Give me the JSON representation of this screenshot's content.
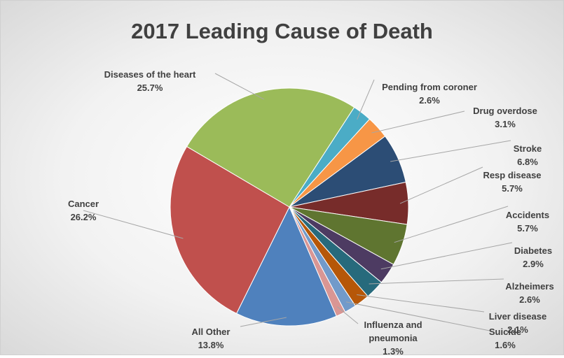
{
  "chart_data": {
    "type": "pie",
    "title": "2017 Leading Cause of Death",
    "categories": [
      "Pending from coroner",
      "Drug overdose",
      "Stroke",
      "Resp disease",
      "Accidents",
      "Diabetes",
      "Alzheimers",
      "Liver disease",
      "Suicide",
      "Influenza and pneumonia",
      "All Other",
      "Cancer",
      "Diseases of the heart"
    ],
    "values": [
      2.6,
      3.1,
      6.8,
      5.7,
      5.7,
      2.9,
      2.6,
      2.1,
      1.6,
      1.3,
      13.8,
      26.2,
      25.7
    ],
    "value_labels": [
      "2.6%",
      "3.1%",
      "6.8%",
      "5.7%",
      "5.7%",
      "2.9%",
      "2.6%",
      "2.1%",
      "1.6%",
      "1.3%",
      "13.8%",
      "26.2%",
      "25.7%"
    ],
    "colors": [
      "#4bacc6",
      "#f79646",
      "#2c4d75",
      "#772c2a",
      "#5f7530",
      "#4d3b62",
      "#276a7c",
      "#b65708",
      "#729aca",
      "#d99694",
      "#4f81bd",
      "#c0504d",
      "#9bbb59"
    ]
  }
}
